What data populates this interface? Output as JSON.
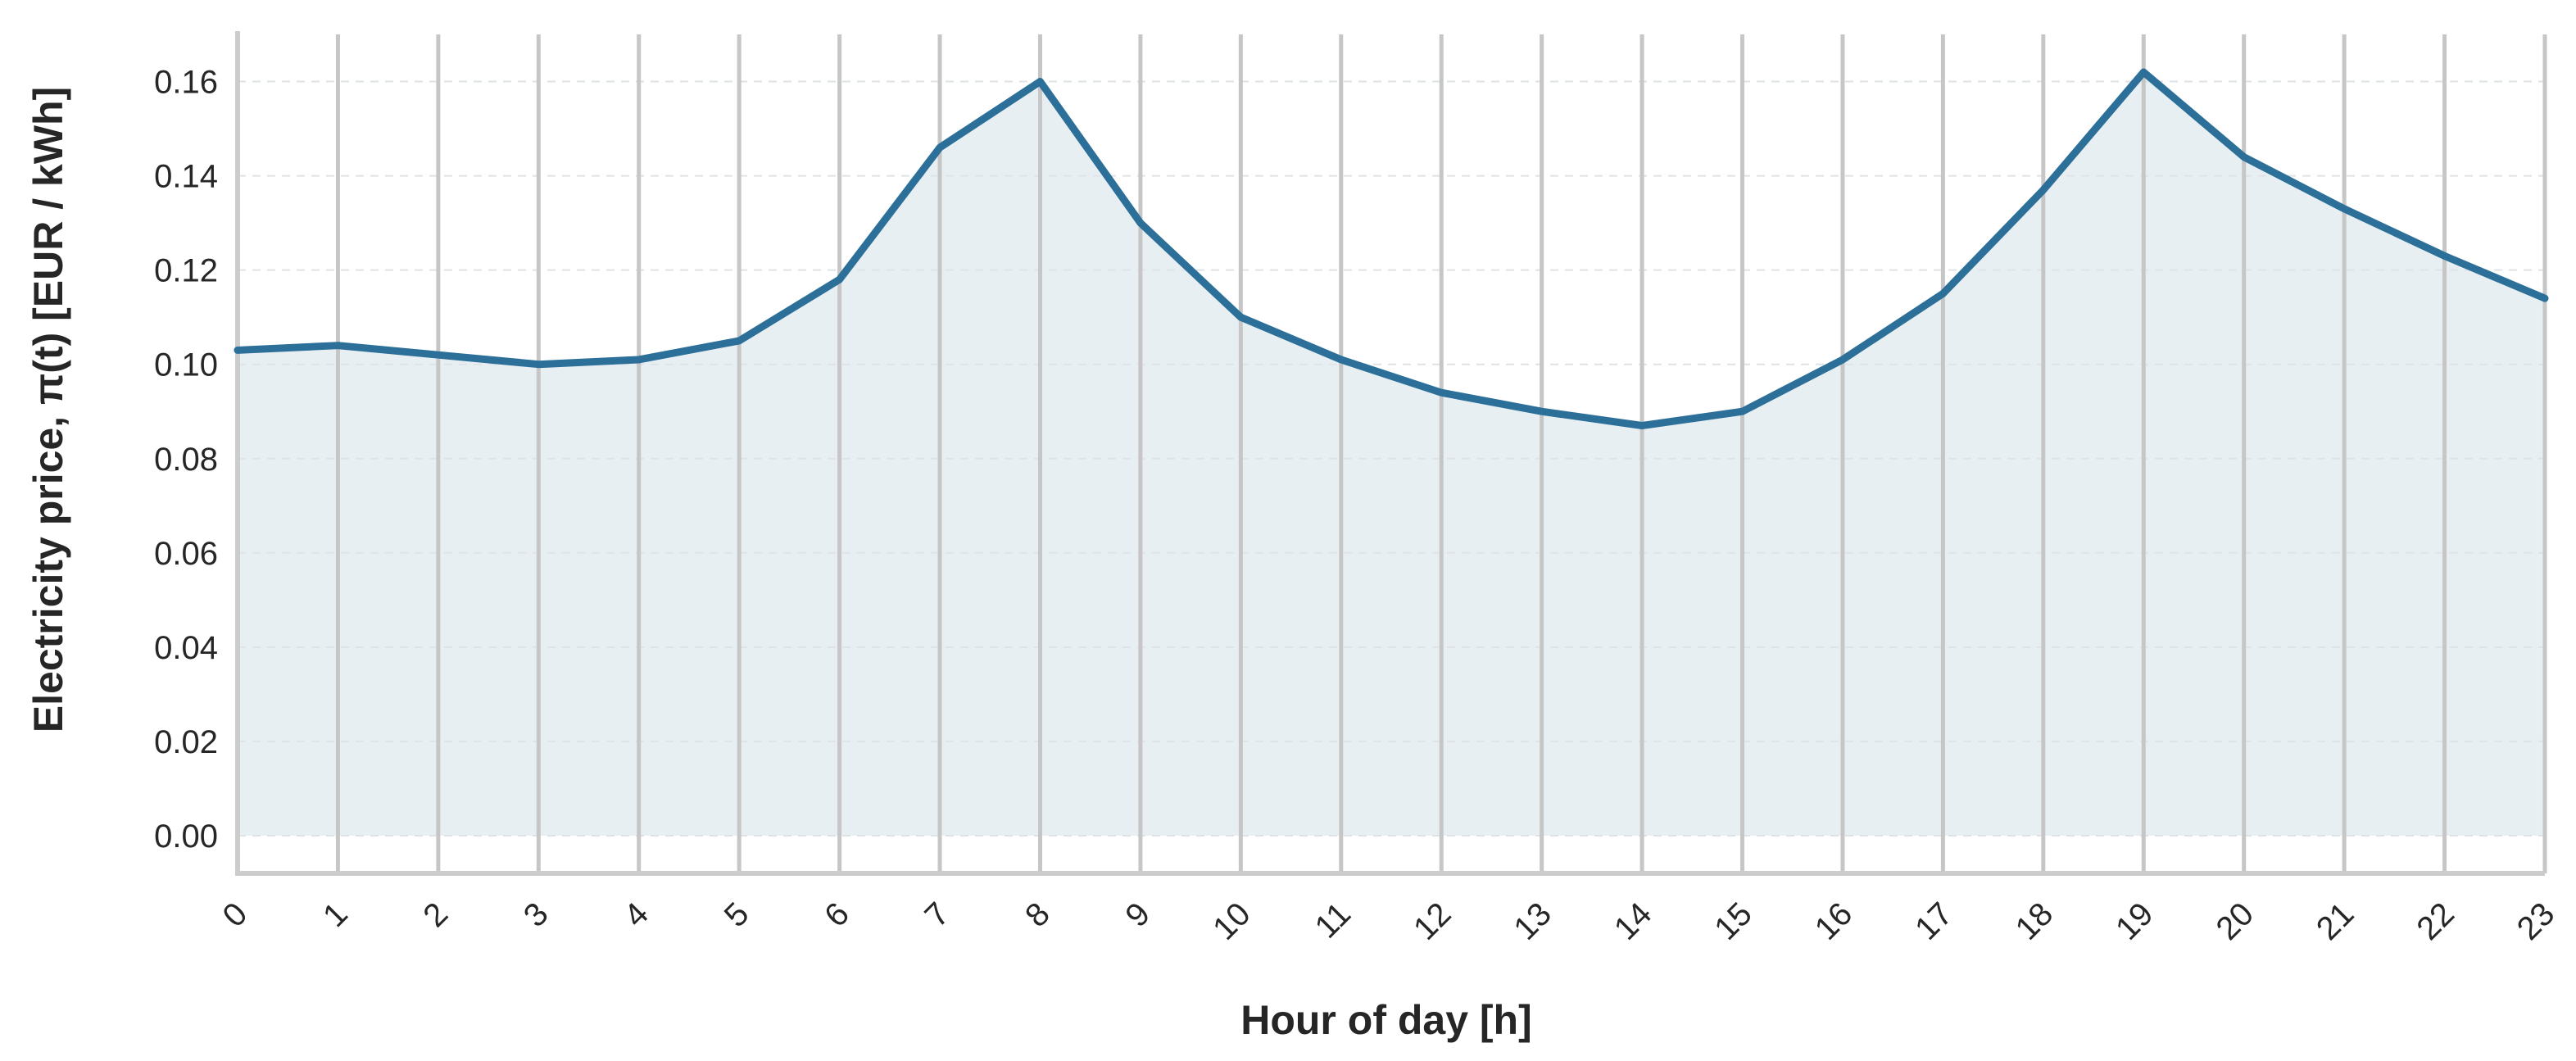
{
  "chart_data": {
    "type": "area",
    "title": "",
    "xlabel": "Hour of day [h]",
    "ylabel": "Electricity price, π(t) [EUR / kWh]",
    "x": [
      0,
      1,
      2,
      3,
      4,
      5,
      6,
      7,
      8,
      9,
      10,
      11,
      12,
      13,
      14,
      15,
      16,
      17,
      18,
      19,
      20,
      21,
      22,
      23
    ],
    "x_tick_labels": [
      "0",
      "1",
      "2",
      "3",
      "4",
      "5",
      "6",
      "7",
      "8",
      "9",
      "10",
      "11",
      "12",
      "13",
      "14",
      "15",
      "16",
      "17",
      "18",
      "19",
      "20",
      "21",
      "22",
      "23"
    ],
    "y_ticks": [
      0.0,
      0.02,
      0.04,
      0.06,
      0.08,
      0.1,
      0.12,
      0.14,
      0.16
    ],
    "y_tick_labels": [
      "0.00",
      "0.02",
      "0.04",
      "0.06",
      "0.08",
      "0.10",
      "0.12",
      "0.14",
      "0.16"
    ],
    "series": [
      {
        "values": [
          0.103,
          0.104,
          0.102,
          0.1,
          0.101,
          0.105,
          0.118,
          0.146,
          0.16,
          0.13,
          0.11,
          0.101,
          0.094,
          0.09,
          0.087,
          0.09,
          0.101,
          0.115,
          0.137,
          0.162,
          0.144,
          0.133,
          0.123,
          0.114
        ]
      }
    ],
    "xlim": [
      0,
      23
    ],
    "ylim": [
      -0.008,
      0.17
    ],
    "grid": {
      "vertical": true,
      "horizontal_dashed": true
    },
    "colors": {
      "line": "#2c6f99",
      "fill": "#e8eff3",
      "vgrid": "#c6c6c6",
      "hgrid": "#dde3e6",
      "spine": "#cccccc"
    }
  }
}
